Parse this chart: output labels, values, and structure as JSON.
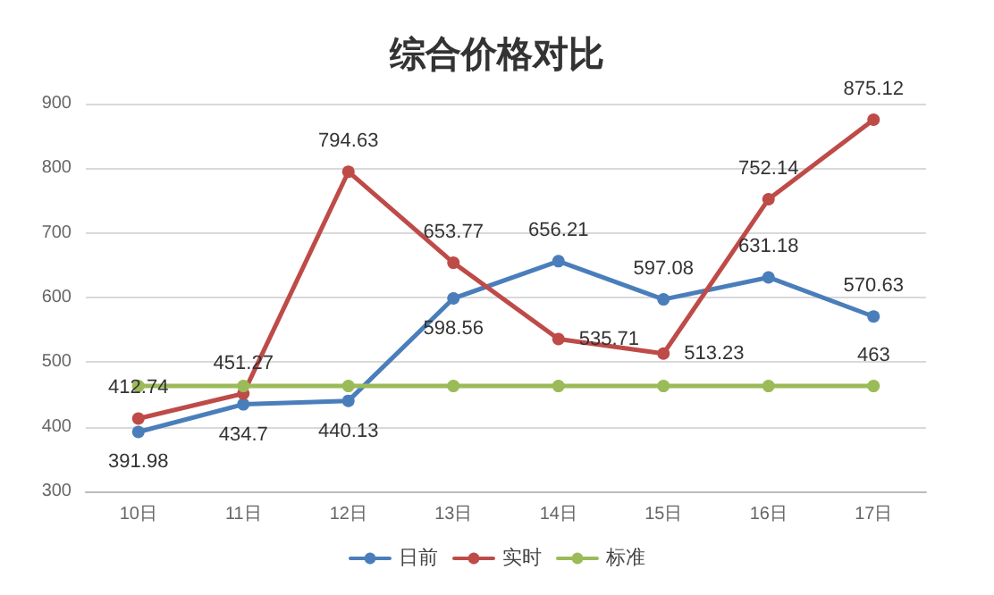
{
  "chart_data": {
    "type": "line",
    "title": "综合价格对比",
    "categories": [
      "10日",
      "11日",
      "12日",
      "13日",
      "14日",
      "15日",
      "16日",
      "17日"
    ],
    "series": [
      {
        "name": "日前",
        "color": "#4a7ebb",
        "values": [
          391.98,
          434.7,
          440.13,
          598.56,
          656.21,
          597.08,
          631.18,
          570.63
        ],
        "value_labels": [
          "391.98",
          "434.7",
          "440.13",
          "598.56",
          "656.21",
          "597.08",
          "631.18",
          "570.63"
        ]
      },
      {
        "name": "实时",
        "color": "#be4b48",
        "values": [
          412.74,
          451.27,
          794.63,
          653.77,
          535.71,
          513.23,
          752.14,
          875.12
        ],
        "value_labels": [
          "412.74",
          "451.27",
          "794.63",
          "653.77",
          "535.71",
          "513.23",
          "752.14",
          "875.12"
        ]
      },
      {
        "name": "标准",
        "color": "#9bbb59",
        "values": [
          463,
          463,
          463,
          463,
          463,
          463,
          463,
          463
        ],
        "value_labels": [
          null,
          null,
          null,
          null,
          null,
          null,
          null,
          "463"
        ]
      }
    ],
    "ylim": [
      300,
      900
    ],
    "yticks": [
      300,
      400,
      500,
      600,
      700,
      800,
      900
    ],
    "grid": "y",
    "legend": "bottom",
    "marker": "circle",
    "line_style": "solid"
  }
}
